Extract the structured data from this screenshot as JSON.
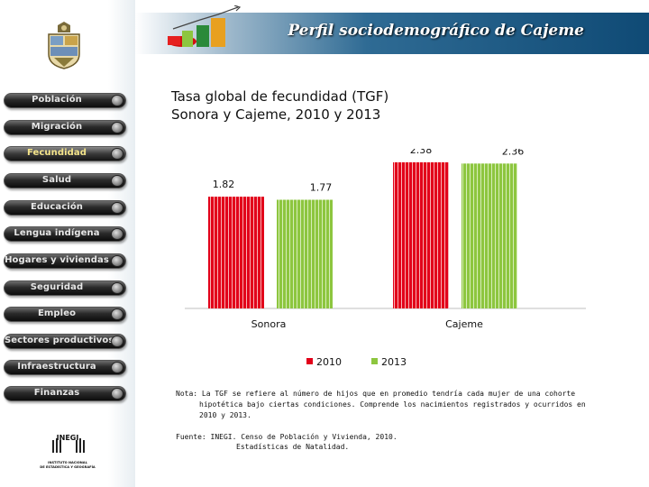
{
  "header": {
    "title": "Perfil sociodemográfico de Cajeme"
  },
  "sidebar": {
    "items": [
      {
        "label": "Población",
        "active": false
      },
      {
        "label": "Migración",
        "active": false
      },
      {
        "label": "Fecundidad",
        "active": true
      },
      {
        "label": "Salud",
        "active": false
      },
      {
        "label": "Educación",
        "active": false
      },
      {
        "label": "Lengua indígena",
        "active": false
      },
      {
        "label": "Hogares y viviendas",
        "active": false
      },
      {
        "label": "Seguridad",
        "active": false
      },
      {
        "label": "Empleo",
        "active": false
      },
      {
        "label": "Sectores productivos",
        "active": false
      },
      {
        "label": "Infraestructura",
        "active": false
      },
      {
        "label": "Finanzas",
        "active": false
      }
    ],
    "logo_text": "INEGI",
    "logo_subtext": [
      "INSTITUTO NACIONAL",
      "DE ESTADÍSTICA Y GEOGRAFÍA"
    ]
  },
  "chart_title": {
    "line1": "Tasa global de fecundidad (TGF)",
    "line2": "Sonora y Cajeme, 2010 y 2013"
  },
  "chart_data": {
    "type": "bar",
    "categories": [
      "Sonora",
      "Cajeme"
    ],
    "series": [
      {
        "name": "2010",
        "values": [
          1.82,
          2.38
        ],
        "color": "#e2001a"
      },
      {
        "name": "2013",
        "values": [
          1.77,
          2.36
        ],
        "color": "#8dc63f"
      }
    ],
    "data_labels": [
      "1.82",
      "1.77",
      "2.38",
      "2.36"
    ],
    "ylim": [
      0,
      2.6
    ],
    "grid": false,
    "legend_position": "bottom",
    "title": "Tasa global de fecundidad (TGF) Sonora y Cajeme, 2010 y 2013"
  },
  "note": {
    "line1": "Nota: La TGF se refiere al número de hijos que en promedio tendría cada mujer de una cohorte",
    "line2": "hipotética bajo ciertas condiciones. Comprende los nacimientos registrados y ocurridos en",
    "line3": "2010 y 2013."
  },
  "source": {
    "line1": "Fuente: INEGI. Censo de Población y Vivienda, 2010.",
    "line2": "Estadísticas de Natalidad."
  }
}
